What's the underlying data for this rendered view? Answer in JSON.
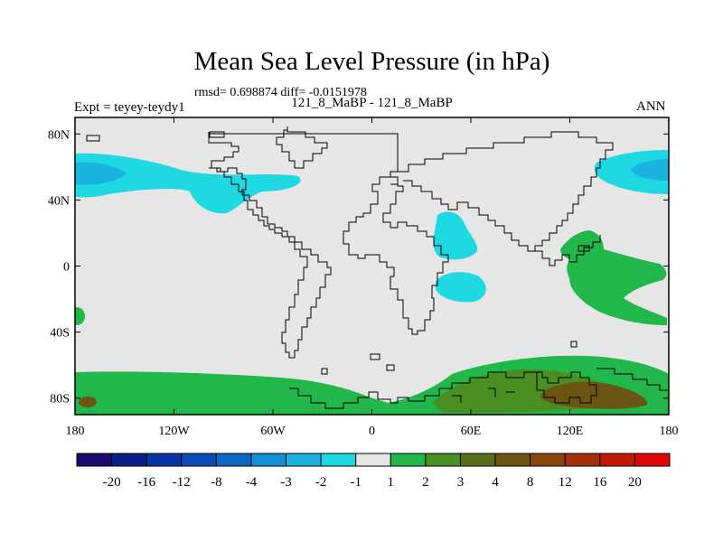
{
  "title": "Mean Sea Level Pressure (in hPa)",
  "stats_line": "rmsd= 0.698874 diff= -0.0151978",
  "expt_label": "Expt = teyey-teydy1",
  "subtitle": "121_8_MaBP - 121_8_MaBP",
  "season": "ANN",
  "x_axis": {
    "lon_min": 180,
    "lon_max": 540,
    "ticks": [
      {
        "value": 180,
        "label": "180"
      },
      {
        "value": 240,
        "label": "120W"
      },
      {
        "value": 300,
        "label": "60W"
      },
      {
        "value": 360,
        "label": "0"
      },
      {
        "value": 420,
        "label": "60E"
      },
      {
        "value": 480,
        "label": "120E"
      },
      {
        "value": 540,
        "label": "180"
      }
    ]
  },
  "y_axis": {
    "lat_min": -90,
    "lat_max": 90,
    "ticks": [
      {
        "value": 80,
        "label": "80N"
      },
      {
        "value": 40,
        "label": "40N"
      },
      {
        "value": 0,
        "label": "0"
      },
      {
        "value": -40,
        "label": "40S"
      },
      {
        "value": -80,
        "label": "80S"
      }
    ]
  },
  "colorbar": {
    "colors": [
      "#1b0a6b",
      "#0a1f8c",
      "#0a33a6",
      "#0a4cb8",
      "#0e66c4",
      "#1590d3",
      "#1ab3dd",
      "#1ed8e2",
      "#e6e6e6",
      "#22b74b",
      "#4a8f22",
      "#5a6e1a",
      "#6b5512",
      "#8a460c",
      "#a52f08",
      "#c01a05",
      "#e00a05"
    ],
    "labels": [
      "-20",
      "-16",
      "-12",
      "-8",
      "-4",
      "-3",
      "-2",
      "-1",
      "1",
      "2",
      "3",
      "4",
      "8",
      "12",
      "16",
      "20"
    ]
  },
  "colors": {
    "background": "#e6e6e6",
    "minus_1": "#1ed8e2",
    "minus_2": "#1ab3dd",
    "plus_1": "#22b74b",
    "plus_2": "#4a8f22",
    "plus_3": "#6b5512",
    "coast": "#000000"
  }
}
